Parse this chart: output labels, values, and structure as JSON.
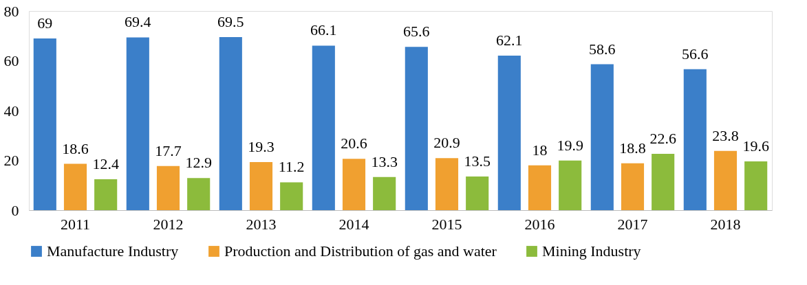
{
  "chart_data": {
    "type": "bar",
    "categories": [
      "2011",
      "2012",
      "2013",
      "2014",
      "2015",
      "2016",
      "2017",
      "2018"
    ],
    "series": [
      {
        "name": "Manufacture Industry",
        "color": "#3b7fc9",
        "values": [
          69,
          69.4,
          69.5,
          66.1,
          65.6,
          62.1,
          58.6,
          56.6
        ]
      },
      {
        "name": "Production and Distribution of gas and water",
        "color": "#f0a030",
        "values": [
          18.6,
          17.7,
          19.3,
          20.6,
          20.9,
          18,
          18.8,
          23.8
        ]
      },
      {
        "name": "Mining Industry",
        "color": "#8cbb3c",
        "values": [
          12.4,
          12.9,
          11.2,
          13.3,
          13.5,
          19.9,
          22.6,
          19.6
        ]
      }
    ],
    "ylim": [
      0,
      80
    ],
    "yticks": [
      0,
      20,
      40,
      60,
      80
    ],
    "grid": false,
    "legend": "bottom",
    "data_labels": true
  }
}
